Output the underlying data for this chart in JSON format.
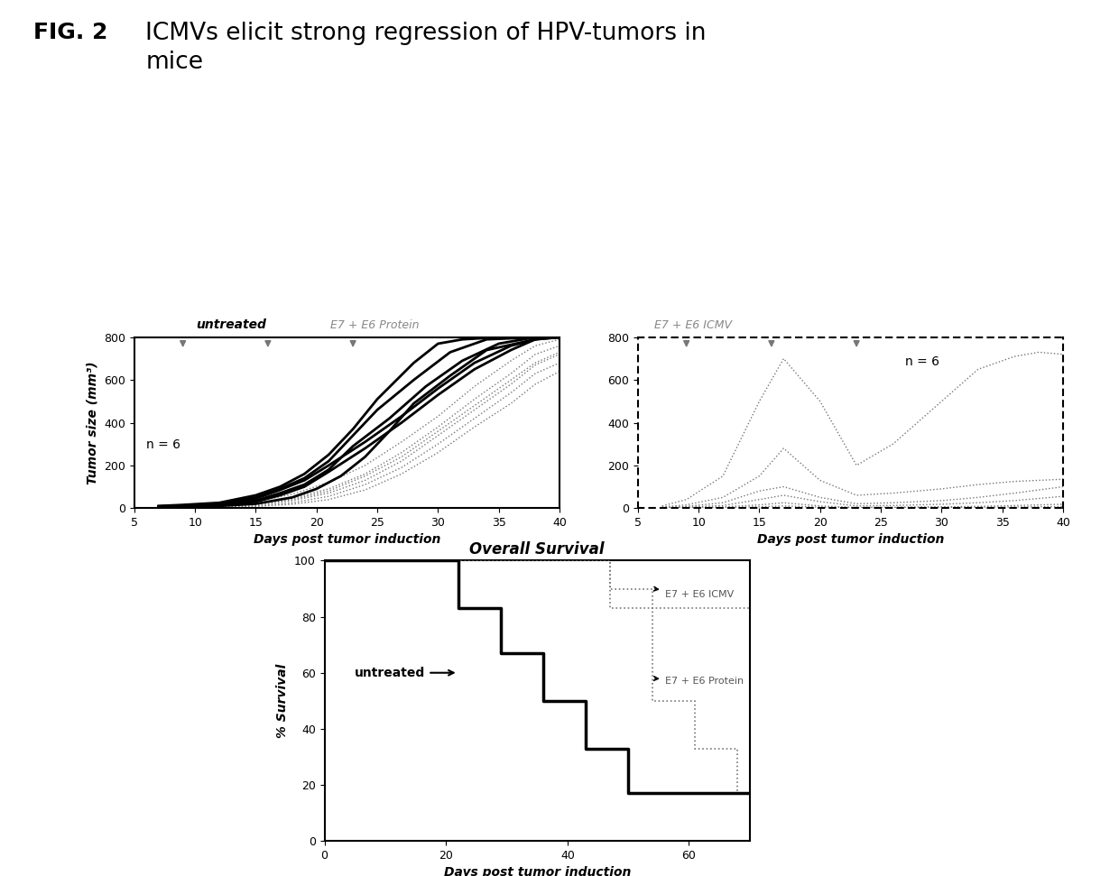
{
  "fig_label": "FIG. 2",
  "title": "ICMVs elicit strong regression of HPV-tumors in\nmice",
  "title_fontsize": 19,
  "fig_label_fontsize": 18,
  "untreated_label": "untreated",
  "protein_label": "E7 + E6 Protein",
  "icmv_label_top": "E7 + E6 ICMV",
  "left_plot": {
    "xlabel": "Days post tumor induction",
    "ylabel": "Tumor size (mm³)",
    "xlim": [
      5,
      40
    ],
    "ylim": [
      0,
      800
    ],
    "xticks": [
      5,
      10,
      15,
      20,
      25,
      30,
      35,
      40
    ],
    "yticks": [
      0,
      200,
      400,
      600,
      800
    ],
    "n_label": "n = 6",
    "vaccine_times": [
      9,
      16,
      23
    ],
    "solid_lines_x": [
      [
        7,
        9,
        12,
        15,
        17,
        19,
        21,
        23,
        25,
        28,
        30,
        32,
        35,
        38,
        40
      ],
      [
        7,
        9,
        12,
        15,
        17,
        19,
        21,
        23,
        25,
        28,
        31,
        34,
        38,
        40
      ],
      [
        7,
        9,
        12,
        15,
        17,
        19,
        21,
        23,
        26,
        29,
        32,
        35,
        38,
        40
      ],
      [
        7,
        9,
        12,
        15,
        18,
        20,
        22,
        24,
        26,
        28,
        31,
        34,
        38
      ],
      [
        7,
        9,
        12,
        15,
        17,
        19,
        21,
        24,
        27,
        30,
        33,
        36,
        38,
        40
      ],
      [
        7,
        9,
        12,
        15,
        17,
        19,
        21,
        24,
        27,
        30,
        33,
        36,
        38,
        40
      ]
    ],
    "solid_lines_y": [
      [
        10,
        15,
        25,
        60,
        100,
        160,
        250,
        370,
        510,
        680,
        770,
        790,
        800,
        800,
        800
      ],
      [
        8,
        12,
        20,
        50,
        90,
        140,
        220,
        340,
        460,
        600,
        730,
        790,
        800,
        800
      ],
      [
        5,
        8,
        15,
        35,
        70,
        110,
        180,
        290,
        420,
        570,
        690,
        770,
        800,
        800
      ],
      [
        3,
        5,
        10,
        20,
        50,
        90,
        150,
        240,
        360,
        490,
        620,
        740,
        790
      ],
      [
        6,
        10,
        18,
        45,
        85,
        130,
        200,
        310,
        430,
        560,
        680,
        760,
        790,
        800
      ],
      [
        4,
        7,
        12,
        30,
        60,
        100,
        170,
        280,
        400,
        530,
        650,
        740,
        790,
        800
      ]
    ],
    "dotted_lines_x": [
      [
        7,
        9,
        12,
        15,
        18,
        21,
        24,
        27,
        30,
        33,
        36,
        38,
        40
      ],
      [
        7,
        9,
        12,
        15,
        18,
        21,
        24,
        27,
        30,
        33,
        36,
        38,
        40
      ],
      [
        7,
        9,
        12,
        15,
        18,
        21,
        24,
        27,
        30,
        33,
        36,
        38,
        40
      ],
      [
        7,
        9,
        12,
        15,
        18,
        21,
        24,
        27,
        30,
        33,
        36,
        38,
        40
      ],
      [
        7,
        9,
        12,
        15,
        18,
        21,
        24,
        27,
        30,
        33,
        36,
        38,
        40
      ],
      [
        7,
        9,
        12,
        15,
        18,
        21,
        24,
        27,
        30,
        33,
        36,
        38,
        40
      ]
    ],
    "dotted_lines_y": [
      [
        2,
        5,
        12,
        30,
        65,
        120,
        200,
        310,
        430,
        570,
        690,
        760,
        790
      ],
      [
        1,
        3,
        8,
        20,
        45,
        90,
        160,
        260,
        380,
        510,
        630,
        720,
        760
      ],
      [
        1,
        2,
        5,
        15,
        35,
        70,
        130,
        220,
        340,
        460,
        580,
        670,
        720
      ],
      [
        0,
        2,
        4,
        10,
        25,
        55,
        110,
        190,
        300,
        420,
        540,
        630,
        680
      ],
      [
        0,
        1,
        3,
        8,
        18,
        40,
        85,
        160,
        260,
        380,
        490,
        580,
        640
      ],
      [
        1,
        3,
        7,
        18,
        40,
        80,
        150,
        240,
        360,
        480,
        600,
        680,
        730
      ]
    ]
  },
  "right_plot": {
    "xlabel": "Days post tumor induction",
    "xlim": [
      5,
      40
    ],
    "ylim": [
      0,
      800
    ],
    "xticks": [
      5,
      10,
      15,
      20,
      25,
      30,
      35,
      40
    ],
    "yticks": [
      0,
      200,
      400,
      600,
      800
    ],
    "n_label": "n = 6",
    "vaccine_times": [
      9,
      16,
      23
    ],
    "lines_x": [
      [
        7,
        9,
        12,
        15,
        17,
        20,
        23,
        26,
        30,
        33,
        36,
        38,
        40
      ],
      [
        7,
        9,
        12,
        15,
        17,
        20,
        23,
        26,
        30,
        33,
        36,
        38,
        40
      ],
      [
        7,
        9,
        12,
        15,
        17,
        20,
        23,
        26,
        30,
        33,
        36,
        38,
        40
      ],
      [
        7,
        9,
        12,
        15,
        17,
        20,
        23,
        26,
        30,
        33,
        36,
        38,
        40
      ],
      [
        7,
        9,
        12,
        15,
        17,
        20,
        23,
        26,
        30,
        33,
        36,
        38,
        40
      ],
      [
        7,
        9,
        12,
        15,
        17,
        20,
        23,
        26,
        30,
        33,
        36,
        38,
        40
      ]
    ],
    "lines_y": [
      [
        5,
        15,
        50,
        150,
        280,
        130,
        60,
        70,
        90,
        110,
        125,
        130,
        135
      ],
      [
        2,
        8,
        25,
        80,
        100,
        50,
        20,
        25,
        35,
        50,
        70,
        85,
        100
      ],
      [
        1,
        4,
        12,
        40,
        60,
        30,
        10,
        12,
        18,
        25,
        35,
        45,
        55
      ],
      [
        0,
        2,
        5,
        15,
        25,
        10,
        3,
        4,
        6,
        8,
        12,
        15,
        18
      ],
      [
        0,
        1,
        2,
        6,
        10,
        4,
        1,
        2,
        3,
        4,
        5,
        6,
        7
      ],
      [
        10,
        40,
        150,
        500,
        700,
        500,
        200,
        300,
        500,
        650,
        710,
        730,
        720
      ]
    ]
  },
  "survival_plot": {
    "title": "Overall Survival",
    "xlabel": "Days post tumor induction",
    "ylabel": "% Survival",
    "xlim": [
      0,
      70
    ],
    "ylim": [
      0,
      100
    ],
    "xticks": [
      0,
      20,
      40,
      60
    ],
    "yticks": [
      0,
      20,
      40,
      60,
      80,
      100
    ],
    "untreated_x": [
      0,
      22,
      22,
      29,
      29,
      36,
      36,
      43,
      43,
      50,
      50,
      70
    ],
    "untreated_y": [
      100,
      100,
      83,
      83,
      67,
      67,
      50,
      50,
      33,
      33,
      17,
      17
    ],
    "protein_x": [
      0,
      47,
      47,
      54,
      54,
      61,
      61,
      68,
      68,
      70
    ],
    "protein_y": [
      100,
      100,
      83,
      83,
      50,
      50,
      33,
      33,
      17,
      17
    ],
    "icmv_x": [
      0,
      47,
      47,
      54,
      54,
      70
    ],
    "icmv_y": [
      100,
      100,
      90,
      90,
      83,
      83
    ]
  }
}
